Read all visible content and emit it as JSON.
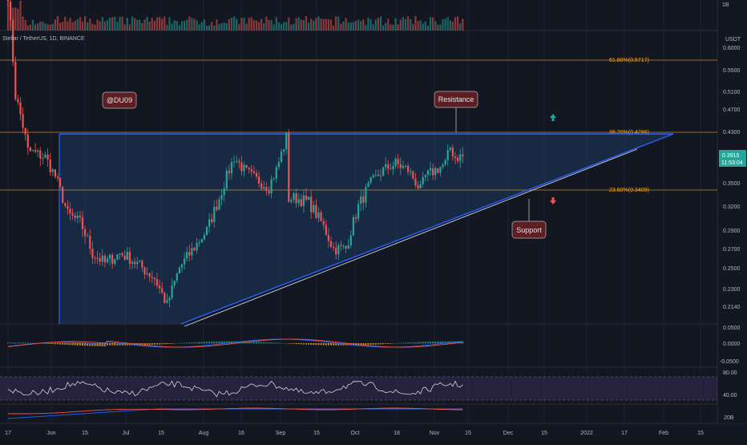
{
  "header": {
    "symbol_title": "Stellar / TetherUS, 1D, BINANCE",
    "volume_scale_label": "1B"
  },
  "price_axis": {
    "currency": "USDT",
    "ticks": [
      "0.6000",
      "0.5500",
      "0.5100",
      "0.4700",
      "0.4300",
      "0.3500",
      "0.3200",
      "0.2900",
      "0.2700",
      "0.2500",
      "0.2300",
      "0.2140"
    ],
    "last_price": "0.3915",
    "countdown": "11:53:04",
    "last_price_color": "#26a69a"
  },
  "macd_axis": {
    "ticks": [
      "0.0500",
      "0.0000",
      "-0.0500"
    ]
  },
  "rsi_axis": {
    "ticks": [
      "80.00",
      "40.00"
    ]
  },
  "bottom_axis": {
    "ticks": [
      "20B"
    ]
  },
  "time_axis": {
    "ticks": [
      "17",
      "Jun",
      "15",
      "Jul",
      "15",
      "Aug",
      "16",
      "Sep",
      "15",
      "Oct",
      "18",
      "Nov",
      "15",
      "Dec",
      "15",
      "2022",
      "17",
      "Feb",
      "15"
    ]
  },
  "fib_levels": [
    {
      "label": "61.80%(0.5717)",
      "value": 0.5717
    },
    {
      "label": "38.20%(0.4286)",
      "value": 0.4286
    },
    {
      "label": "23.60%(0.3409)",
      "value": 0.3409
    }
  ],
  "annotations": {
    "author_tag": "@DU09",
    "resistance_label": "Resistance",
    "support_label": "Support"
  },
  "colors": {
    "background": "#131722",
    "up_candle": "#26a69a",
    "down_candle": "#ef5350",
    "triangle_line": "#2962ff",
    "triangle_fill": "#1e3a5f",
    "fib_line": "#f0a830",
    "rsi_band": "#7e57c2",
    "callout_bg": "#5d1f22"
  },
  "chart_data": {
    "type": "candlestick",
    "title": "Stellar / TetherUS, 1D, BINANCE",
    "ylabel": "USDT",
    "ylim": [
      0.2,
      0.6
    ],
    "x_range": [
      "2021-05-17",
      "2022-02-20"
    ],
    "price_path": [
      [
        "2021-05-17",
        0.72
      ],
      [
        "2021-05-20",
        0.5
      ],
      [
        "2021-05-25",
        0.4
      ],
      [
        "2021-06-01",
        0.39
      ],
      [
        "2021-06-05",
        0.36
      ],
      [
        "2021-06-10",
        0.31
      ],
      [
        "2021-06-15",
        0.3
      ],
      [
        "2021-06-20",
        0.265
      ],
      [
        "2021-06-25",
        0.255
      ],
      [
        "2021-07-01",
        0.265
      ],
      [
        "2021-07-05",
        0.26
      ],
      [
        "2021-07-10",
        0.25
      ],
      [
        "2021-07-15",
        0.24
      ],
      [
        "2021-07-20",
        0.215
      ],
      [
        "2021-07-25",
        0.25
      ],
      [
        "2021-08-01",
        0.275
      ],
      [
        "2021-08-05",
        0.29
      ],
      [
        "2021-08-10",
        0.33
      ],
      [
        "2021-08-16",
        0.39
      ],
      [
        "2021-08-20",
        0.37
      ],
      [
        "2021-08-25",
        0.355
      ],
      [
        "2021-08-30",
        0.345
      ],
      [
        "2021-09-02",
        0.37
      ],
      [
        "2021-09-06",
        0.42
      ],
      [
        "2021-09-07",
        0.33
      ],
      [
        "2021-09-10",
        0.33
      ],
      [
        "2021-09-15",
        0.325
      ],
      [
        "2021-09-20",
        0.3
      ],
      [
        "2021-09-25",
        0.27
      ],
      [
        "2021-09-30",
        0.27
      ],
      [
        "2021-10-05",
        0.32
      ],
      [
        "2021-10-10",
        0.35
      ],
      [
        "2021-10-15",
        0.37
      ],
      [
        "2021-10-20",
        0.38
      ],
      [
        "2021-10-25",
        0.37
      ],
      [
        "2021-10-30",
        0.34
      ],
      [
        "2021-11-01",
        0.36
      ],
      [
        "2021-11-05",
        0.37
      ],
      [
        "2021-11-09",
        0.38
      ],
      [
        "2021-11-11",
        0.405
      ],
      [
        "2021-11-13",
        0.39
      ],
      [
        "2021-11-16",
        0.3915
      ]
    ],
    "volume_scale": "1B",
    "fibonacci": [
      {
        "level": "61.80%",
        "price": 0.5717
      },
      {
        "level": "38.20%",
        "price": 0.4286
      },
      {
        "level": "23.60%",
        "price": 0.3409
      }
    ],
    "trendlines": {
      "resistance": {
        "price": 0.4286,
        "from": "2021-06-01",
        "to": "2022-01-29"
      },
      "support": {
        "from": [
          "2021-07-20",
          0.21
        ],
        "through": [
          "2021-10-02",
          0.26
        ],
        "to": [
          "2022-01-29",
          0.42
        ]
      }
    },
    "indicators": {
      "macd": {
        "ylim": [
          -0.05,
          0.05
        ],
        "ticks": [
          0.05,
          0.0,
          -0.05
        ]
      },
      "rsi": {
        "band": [
          40,
          80
        ]
      }
    },
    "legend": "none",
    "grid": true
  }
}
